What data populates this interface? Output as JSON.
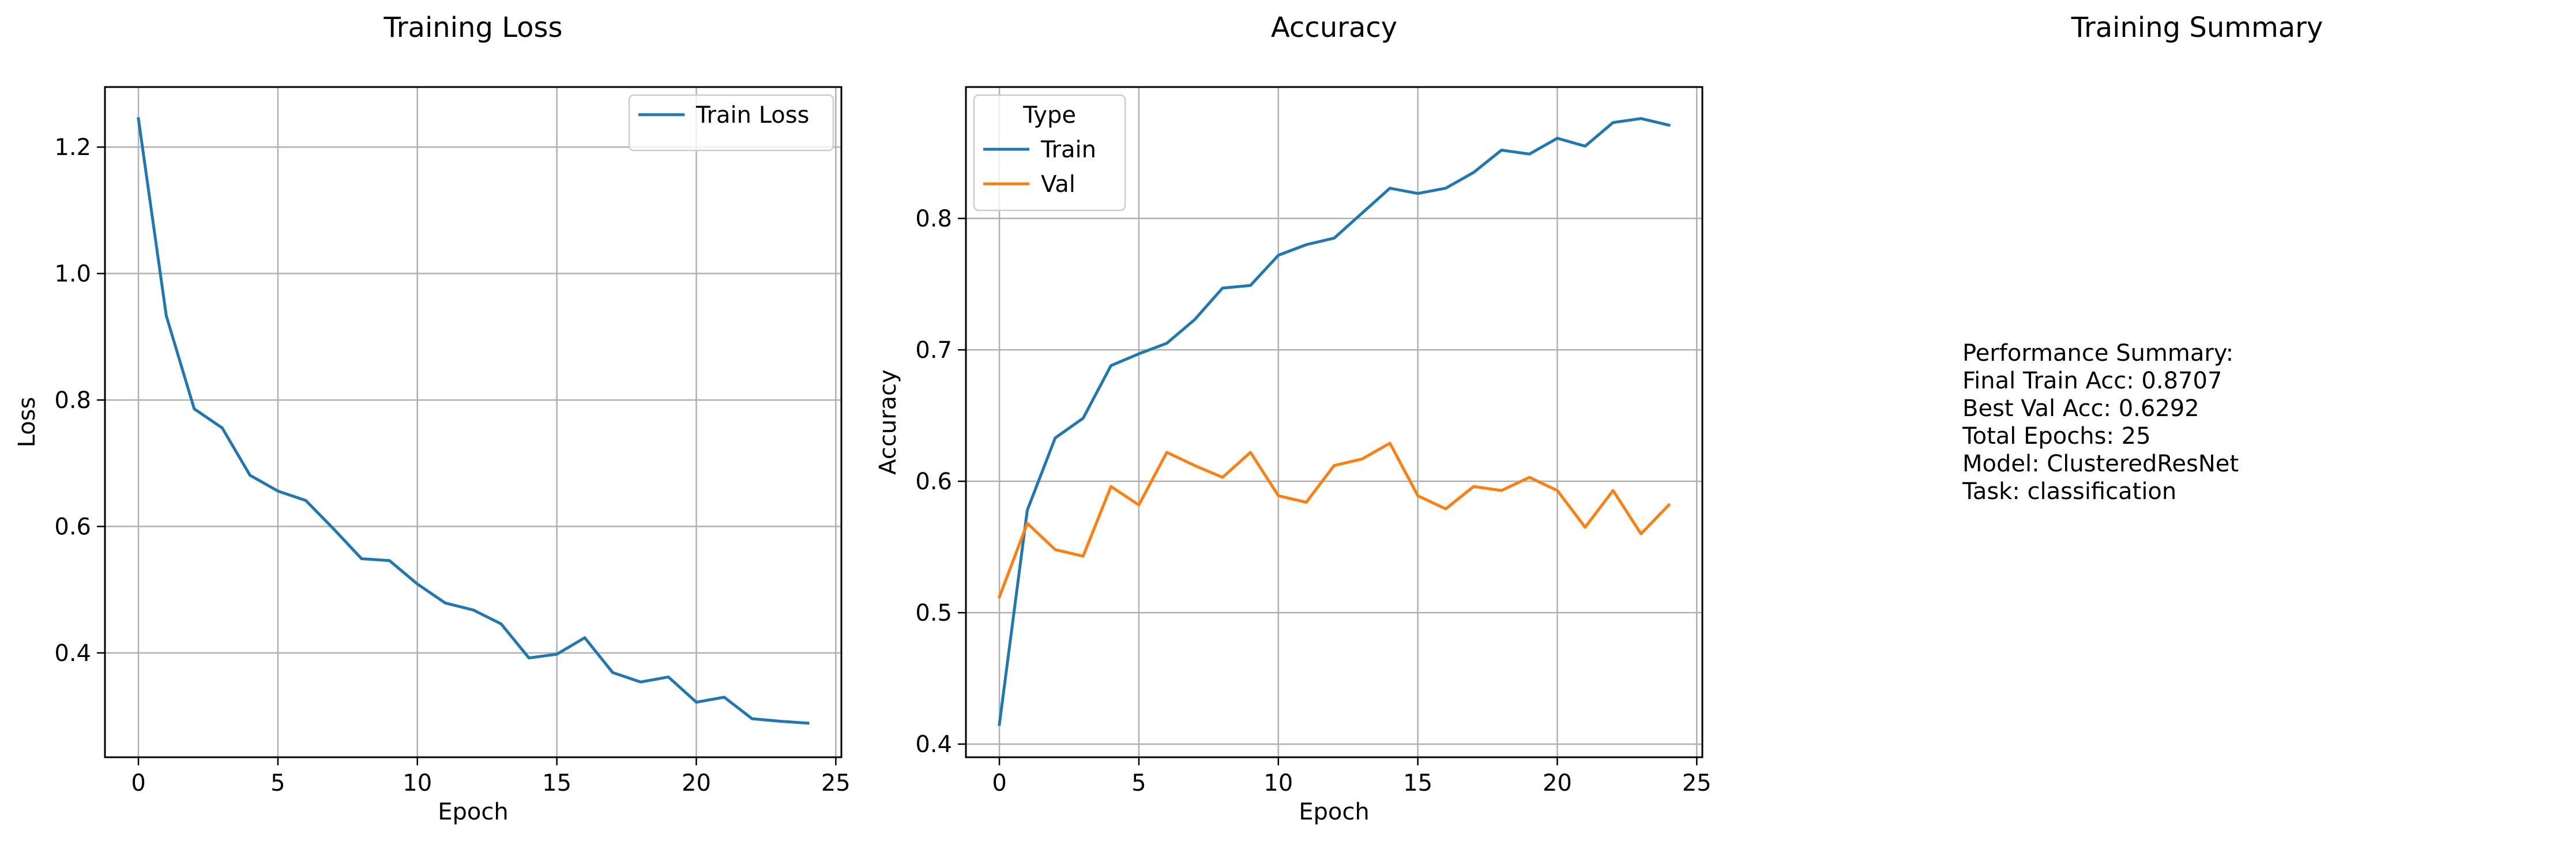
{
  "chart_data": [
    {
      "type": "line",
      "title": "Training Loss",
      "xlabel": "Epoch",
      "ylabel": "Loss",
      "xlim": [
        -1.2,
        25.2
      ],
      "ylim": [
        0.235,
        1.295
      ],
      "xticks": [
        0,
        5,
        10,
        15,
        20,
        25
      ],
      "xtick_labels": [
        "0",
        "5",
        "10",
        "15",
        "20",
        "25"
      ],
      "yticks": [
        0.4,
        0.6,
        0.8,
        1.0,
        1.2
      ],
      "ytick_labels": [
        "0.4",
        "0.6",
        "0.8",
        "1.0",
        "1.2"
      ],
      "grid": true,
      "legend": {
        "placement": "top-right",
        "title": ""
      },
      "x": [
        0,
        1,
        2,
        3,
        4,
        5,
        6,
        7,
        8,
        9,
        10,
        11,
        12,
        13,
        14,
        15,
        16,
        17,
        18,
        19,
        20,
        21,
        22,
        23,
        24
      ],
      "series": [
        {
          "name": "Train Loss",
          "color": "#1f77b4",
          "values": [
            1.245,
            0.933,
            0.786,
            0.756,
            0.681,
            0.656,
            0.641,
            0.596,
            0.549,
            0.546,
            0.509,
            0.479,
            0.468,
            0.446,
            0.392,
            0.398,
            0.424,
            0.369,
            0.354,
            0.362,
            0.322,
            0.33,
            0.296,
            0.292,
            0.289
          ]
        }
      ]
    },
    {
      "type": "line",
      "title": "Accuracy",
      "xlabel": "Epoch",
      "ylabel": "Accuracy",
      "xlim": [
        -1.2,
        25.2
      ],
      "ylim": [
        0.39,
        0.9
      ],
      "xticks": [
        0,
        5,
        10,
        15,
        20,
        25
      ],
      "xtick_labels": [
        "0",
        "5",
        "10",
        "15",
        "20",
        "25"
      ],
      "yticks": [
        0.4,
        0.5,
        0.6,
        0.7,
        0.8
      ],
      "ytick_labels": [
        "0.4",
        "0.5",
        "0.6",
        "0.7",
        "0.8"
      ],
      "grid": true,
      "legend": {
        "placement": "top-left",
        "title": "Type"
      },
      "x": [
        0,
        1,
        2,
        3,
        4,
        5,
        6,
        7,
        8,
        9,
        10,
        11,
        12,
        13,
        14,
        15,
        16,
        17,
        18,
        19,
        20,
        21,
        22,
        23,
        24
      ],
      "series": [
        {
          "name": "Train",
          "color": "#1f77b4",
          "values": [
            0.415,
            0.578,
            0.633,
            0.648,
            0.688,
            0.697,
            0.705,
            0.723,
            0.747,
            0.749,
            0.772,
            0.78,
            0.785,
            0.804,
            0.823,
            0.819,
            0.823,
            0.835,
            0.852,
            0.849,
            0.861,
            0.855,
            0.873,
            0.876,
            0.871
          ]
        },
        {
          "name": "Val",
          "color": "#ff7f0e",
          "values": [
            0.512,
            0.568,
            0.548,
            0.543,
            0.596,
            0.582,
            0.622,
            0.612,
            0.603,
            0.622,
            0.589,
            0.584,
            0.612,
            0.617,
            0.629,
            0.589,
            0.579,
            0.596,
            0.593,
            0.603,
            0.593,
            0.565,
            0.593,
            0.56,
            0.582
          ]
        }
      ]
    }
  ],
  "summary_panel": {
    "title": "Training Summary",
    "lines": [
      "Performance Summary:",
      "Final Train Acc: 0.8707",
      "Best Val Acc: 0.6292",
      "Total Epochs: 25",
      "Model: ClusteredResNet",
      "Task: classification"
    ]
  }
}
